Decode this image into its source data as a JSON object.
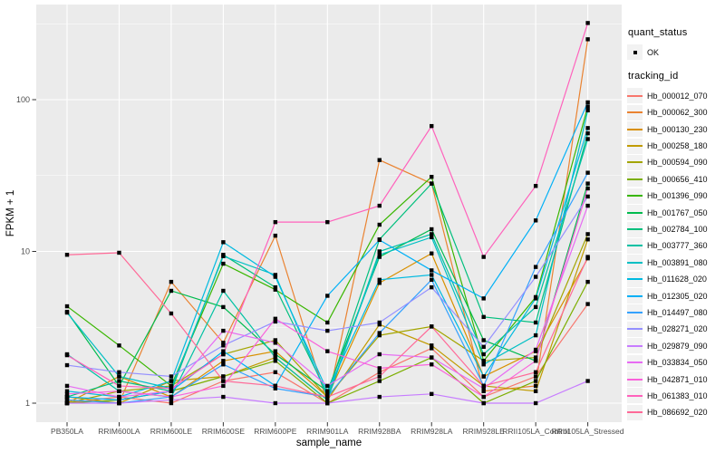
{
  "figure": {
    "x_axis_title": "sample_name",
    "y_axis_title": "FPKM + 1"
  },
  "legend": {
    "quant_status_title": "quant_status",
    "quant_status_items": [
      {
        "label": "OK",
        "marker": "black-square-point"
      }
    ],
    "tracking_id_title": "tracking_id"
  },
  "chart_data": {
    "type": "line",
    "title": "",
    "xlabel": "sample_name",
    "ylabel": "FPKM + 1",
    "y_scale": "log10",
    "ylim": [
      1,
      340
    ],
    "y_ticks": [
      1,
      10,
      100
    ],
    "grid": "on",
    "legend_position": "right",
    "panel_background": "#EBEBEB",
    "grid_color": "#FFFFFF",
    "point_marker": "black-square",
    "quant_status": "OK",
    "categories": [
      "PB350LA",
      "RRIM600LA",
      "RRIM600LE",
      "RRIM600SE",
      "RRIM600PE",
      "RRIM901LA",
      "RRIM928BA",
      "RRIM928LA",
      "RRIM928LE",
      "RRII105LA_Control",
      "RRII105LA_Stressed"
    ],
    "series": [
      {
        "name": "Hb_000012_070",
        "color": "#F8766D",
        "values": [
          1.0,
          1.1,
          1.0,
          1.4,
          1.6,
          1.0,
          1.6,
          2.3,
          1.1,
          1.5,
          4.5
        ]
      },
      {
        "name": "Hb_000062_300",
        "color": "#EA8331",
        "values": [
          1.05,
          1.0,
          6.3,
          2.5,
          12.7,
          1.0,
          40,
          28,
          1.2,
          1.3,
          250
        ]
      },
      {
        "name": "Hb_000130_230",
        "color": "#D89000",
        "values": [
          1.0,
          1.5,
          1.1,
          1.9,
          2.2,
          1.1,
          6.2,
          9.7,
          1.5,
          2.2,
          9.0
        ]
      },
      {
        "name": "Hb_000258_180",
        "color": "#C09B00",
        "values": [
          1.1,
          1.0,
          1.4,
          1.5,
          2.0,
          1.05,
          3.3,
          2.4,
          1.3,
          1.2,
          12
        ]
      },
      {
        "name": "Hb_000594_090",
        "color": "#A3A500",
        "values": [
          1.0,
          1.2,
          1.3,
          2.1,
          2.6,
          1.1,
          2.8,
          3.2,
          1.9,
          2.0,
          13
        ]
      },
      {
        "name": "Hb_000656_410",
        "color": "#7CAE00",
        "values": [
          1.0,
          1.05,
          1.2,
          1.5,
          1.9,
          1.0,
          1.4,
          2.0,
          1.0,
          1.4,
          6.3
        ]
      },
      {
        "name": "Hb_001396_090",
        "color": "#39B600",
        "values": [
          4.35,
          2.4,
          1.3,
          8.3,
          5.6,
          3.4,
          15,
          31,
          1.9,
          5.0,
          90
        ]
      },
      {
        "name": "Hb_001767_050",
        "color": "#00BB4E",
        "values": [
          4.0,
          1.3,
          5.5,
          4.3,
          2.1,
          1.2,
          9.2,
          14,
          2.6,
          1.9,
          28
        ]
      },
      {
        "name": "Hb_002784_100",
        "color": "#00BF7D",
        "values": [
          1.1,
          1.4,
          1.2,
          9.5,
          5.8,
          1.15,
          12,
          28,
          3.7,
          3.4,
          60
        ]
      },
      {
        "name": "Hb_003777_360",
        "color": "#00C1A3",
        "values": [
          2.1,
          1.2,
          1.1,
          5.5,
          2.0,
          1.05,
          10,
          13,
          2.1,
          4.3,
          55
        ]
      },
      {
        "name": "Hb_003891_080",
        "color": "#00BFC4",
        "values": [
          3.95,
          1.5,
          1.25,
          9.3,
          7.0,
          1.1,
          9.5,
          12.4,
          1.8,
          2.8,
          85
        ]
      },
      {
        "name": "Hb_011628_020",
        "color": "#00BAE0",
        "values": [
          1.2,
          1.1,
          1.4,
          11.5,
          6.8,
          1.2,
          6.5,
          7.0,
          1.5,
          4.9,
          65
        ]
      },
      {
        "name": "Hb_012305_020",
        "color": "#00B0F6",
        "values": [
          1.1,
          1.05,
          1.2,
          2.2,
          1.3,
          5.1,
          11.9,
          7.5,
          4.9,
          16,
          96
        ]
      },
      {
        "name": "Hb_014497_080",
        "color": "#35A2FF",
        "values": [
          1.05,
          1.0,
          1.1,
          1.8,
          1.25,
          1.1,
          2.9,
          6.5,
          1.3,
          7.9,
          33
        ]
      },
      {
        "name": "Hb_028271_020",
        "color": "#9590FF",
        "values": [
          1.78,
          1.6,
          1.5,
          2.4,
          3.45,
          3.0,
          3.4,
          5.8,
          2.35,
          6.8,
          23
        ]
      },
      {
        "name": "Hb_029879_090",
        "color": "#C77CFF",
        "values": [
          1.0,
          1.0,
          1.05,
          1.1,
          1.0,
          1.0,
          1.1,
          1.15,
          1.0,
          1.0,
          1.4
        ]
      },
      {
        "name": "Hb_033834_050",
        "color": "#E76BF3",
        "values": [
          1.3,
          1.1,
          1.2,
          3.0,
          2.5,
          1.3,
          2.1,
          2.0,
          1.25,
          2.25,
          20
        ]
      },
      {
        "name": "Hb_042871_010",
        "color": "#FA62DB",
        "values": [
          1.15,
          1.2,
          1.1,
          1.3,
          3.6,
          2.2,
          1.7,
          1.8,
          1.1,
          1.9,
          26
        ]
      },
      {
        "name": "Hb_061383_010",
        "color": "#FF62BC",
        "values": [
          2.07,
          1.3,
          1.25,
          2.1,
          15.6,
          15.6,
          20,
          67,
          9.2,
          27,
          320
        ]
      },
      {
        "name": "Hb_086692_020",
        "color": "#FF6A98",
        "values": [
          9.5,
          9.8,
          3.9,
          1.4,
          1.3,
          1.1,
          1.5,
          3.2,
          1.3,
          1.6,
          9.2
        ]
      }
    ]
  }
}
